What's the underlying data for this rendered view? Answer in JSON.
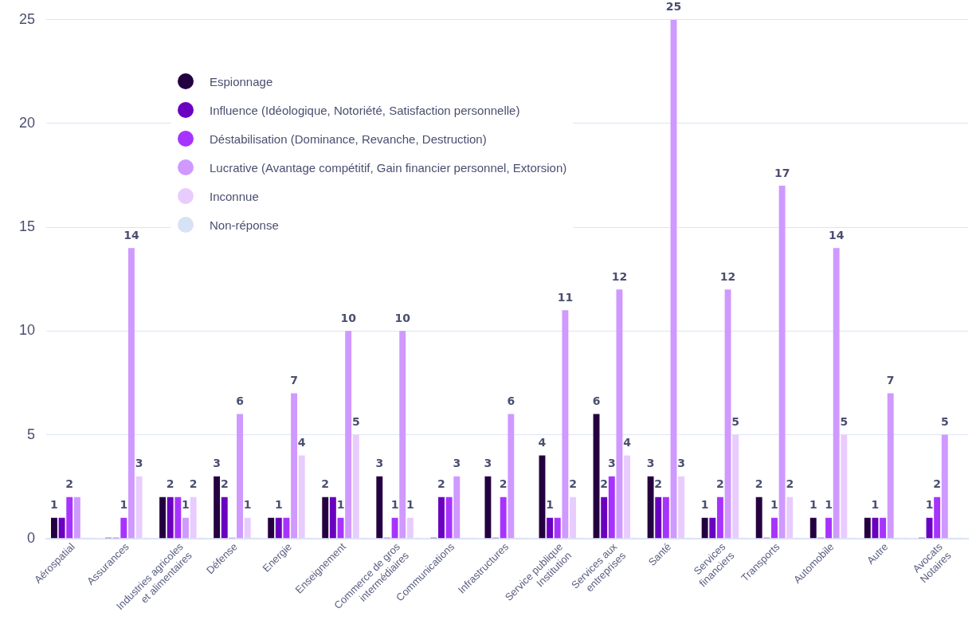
{
  "chart_data": {
    "type": "bar",
    "categories": [
      "Aérospatial",
      "Assurances",
      "Industries agricoles\net alimentaires",
      "Défense",
      "Energie",
      "Enseignement",
      "Commerce de gros\nintermédiaires",
      "Communications",
      "Infrastructures",
      "Service publique\nInstitution",
      "Services aux\nentreprises",
      "Santé",
      "Services\nfinanciers",
      "Transports",
      "Automobile",
      "Autre",
      "Avocats\nNotaires"
    ],
    "series": [
      {
        "name": "Espionnage",
        "color": "#240040",
        "values": [
          1,
          0,
          2,
          3,
          1,
          2,
          3,
          0,
          3,
          4,
          6,
          3,
          1,
          2,
          1,
          1,
          0
        ],
        "value_labels": [
          "1",
          null,
          null,
          "3",
          null,
          "2",
          "3",
          null,
          "3",
          "4",
          "6",
          "3",
          "1",
          "2",
          "1",
          null,
          null
        ]
      },
      {
        "name": "Influence (Idéologique, Notoriété, Satisfaction personnelle)",
        "color": "#6a00c0",
        "values": [
          1,
          0,
          2,
          2,
          1,
          2,
          0,
          2,
          0,
          1,
          2,
          2,
          1,
          0,
          0,
          1,
          1
        ],
        "value_labels": [
          null,
          null,
          "2",
          "2",
          "1",
          null,
          null,
          "2",
          null,
          "1",
          "2",
          "2",
          null,
          null,
          null,
          "1",
          "1"
        ]
      },
      {
        "name": "Déstabilisation (Dominance, Revanche, Destruction)",
        "color": "#a733ff",
        "values": [
          2,
          1,
          2,
          0,
          1,
          1,
          1,
          2,
          2,
          1,
          3,
          2,
          2,
          1,
          1,
          1,
          2
        ],
        "value_labels": [
          "2",
          "1",
          null,
          null,
          null,
          "1",
          "1",
          null,
          "2",
          null,
          "3",
          null,
          "2",
          "1",
          "1",
          null,
          "2"
        ]
      },
      {
        "name": "Lucrative (Avantage compétitif, Gain financier personnel, Extorsion)",
        "color": "#cf99ff",
        "values": [
          2,
          14,
          1,
          6,
          7,
          10,
          10,
          3,
          6,
          11,
          12,
          25,
          12,
          17,
          14,
          7,
          5
        ],
        "value_labels": [
          null,
          "14",
          "1",
          "6",
          "7",
          "10",
          "10",
          "3",
          "6",
          "11",
          "12",
          "25",
          "12",
          "17",
          "14",
          "7",
          "5"
        ]
      },
      {
        "name": "Inconnue",
        "color": "#e8ccff",
        "values": [
          0,
          3,
          2,
          1,
          4,
          5,
          1,
          0,
          0,
          2,
          4,
          3,
          5,
          2,
          5,
          0,
          0
        ],
        "value_labels": [
          null,
          "3",
          "2",
          "1",
          "4",
          "5",
          "1",
          null,
          null,
          "2",
          "4",
          "3",
          "5",
          "2",
          "5",
          null,
          null
        ]
      },
      {
        "name": "Non-réponse",
        "color": "#d6e2f5",
        "values": [
          0,
          0,
          0,
          0,
          0,
          0,
          0,
          0,
          0,
          0,
          0,
          0,
          0,
          0,
          0,
          0,
          0
        ]
      }
    ],
    "ylim": [
      0,
      25
    ],
    "yticks": [
      0,
      5,
      10,
      15,
      20,
      25
    ],
    "grid": "y",
    "legend": "top left"
  }
}
